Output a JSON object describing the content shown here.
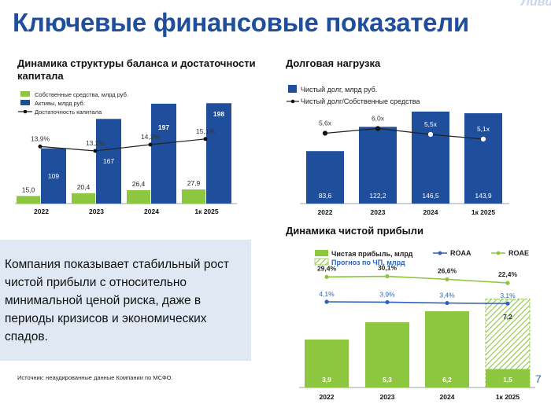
{
  "title": "Ключевые финансовые показатели",
  "logo": "Ливиз",
  "callout": "Компания показывает стабильный рост чистой прибыли с относительно минимальной ценой риска, даже в периоды кризисов и экономических спадов.",
  "source": "Источник: неаудированные данные Компании по МСФО.",
  "page_number": "7",
  "colors": {
    "dark_blue": "#1f4e9c",
    "green": "#8dc63f",
    "navy": "#1f2a44",
    "line_blue": "#2f63b8"
  },
  "chart_data": [
    {
      "type": "bar",
      "title": "Динамика структуры баланса и достаточности капитала",
      "categories": [
        "2022",
        "2023",
        "2024",
        "1к 2025"
      ],
      "series": [
        {
          "name": "Собственные средства, млрд руб.",
          "values": [
            15.0,
            20.4,
            26.4,
            27.9
          ],
          "labels": [
            "15,0",
            "20,4",
            "26,4",
            "27,9"
          ]
        },
        {
          "name": "Активы, млрд руб.",
          "values": [
            109,
            167,
            197,
            198
          ],
          "labels": [
            "109",
            "167",
            "197",
            "198"
          ]
        },
        {
          "name": "Достаточность капитала",
          "type": "line",
          "values": [
            13.9,
            13.2,
            14.2,
            15.1
          ],
          "labels": [
            "13,9%",
            "13,2%",
            "14,2%",
            "15,1%"
          ]
        }
      ],
      "ylim": [
        0,
        200
      ],
      "legend": "top-left"
    },
    {
      "type": "bar",
      "title": "Долговая нагрузка",
      "categories": [
        "2022",
        "2023",
        "2024",
        "1к 2025"
      ],
      "series": [
        {
          "name": "Чистый долг, млрд руб.",
          "values": [
            83.6,
            122.2,
            146.5,
            143.9
          ],
          "labels": [
            "83,6",
            "122,2",
            "146,5",
            "143,9"
          ]
        },
        {
          "name": "Чистый долг/Собственные средства",
          "type": "line",
          "values": [
            5.6,
            6.0,
            5.5,
            5.1
          ],
          "labels": [
            "5,6x",
            "6,0x",
            "5,5x",
            "5,1x"
          ]
        }
      ],
      "ylim": [
        0,
        150
      ],
      "legend": "top-left"
    },
    {
      "type": "bar",
      "title": "Динамика чистой прибыли",
      "categories": [
        "2022",
        "2023",
        "2024",
        "1к 2025"
      ],
      "series": [
        {
          "name": "Чистая прибыль, млрд",
          "values": [
            3.9,
            5.3,
            6.2,
            1.5
          ],
          "labels": [
            "3,9",
            "5,3",
            "6,2",
            "1,5"
          ]
        },
        {
          "name": "Прогноз по ЧП, млрд",
          "values": [
            null,
            null,
            null,
            7.2
          ],
          "labels": [
            "",
            "",
            "",
            "7,2"
          ]
        },
        {
          "name": "ROAA",
          "type": "line",
          "values": [
            4.1,
            3.9,
            3.4,
            3.1
          ],
          "labels": [
            "4,1%",
            "3,9%",
            "3,4%",
            "3,1%"
          ]
        },
        {
          "name": "ROAE",
          "type": "line",
          "values": [
            29.4,
            30.1,
            26.6,
            22.4
          ],
          "labels": [
            "29,4%",
            "30,1%",
            "26,6%",
            "22,4%"
          ]
        }
      ],
      "ylim": [
        0,
        7.2
      ],
      "legend": "top"
    }
  ]
}
